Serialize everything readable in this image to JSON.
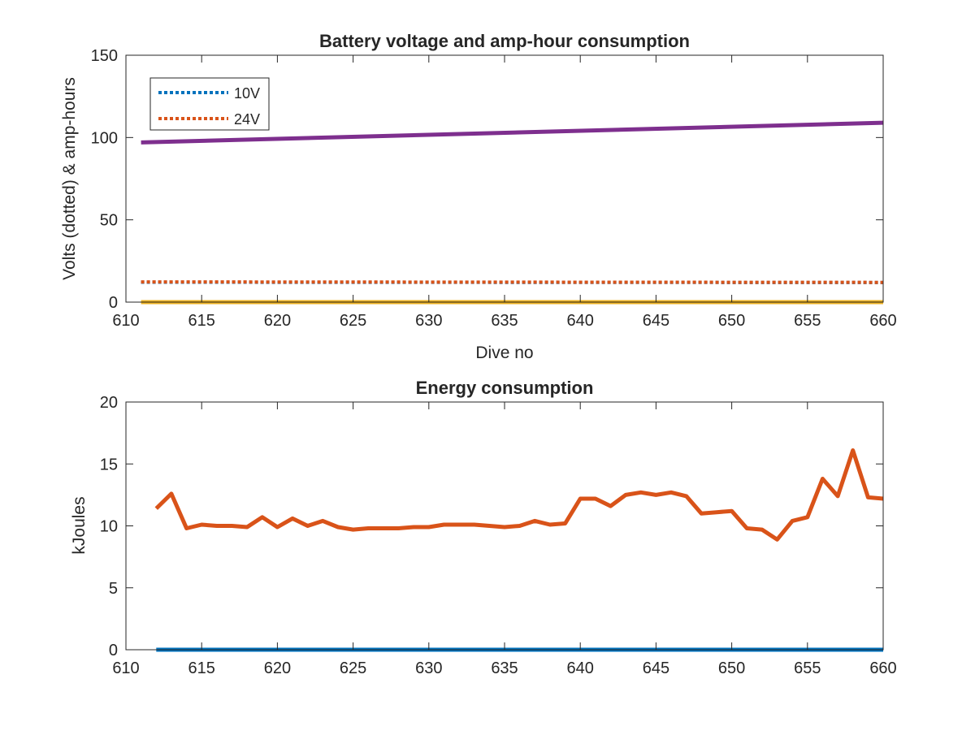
{
  "chart_data": [
    {
      "type": "line",
      "title": "Battery voltage and amp-hour consumption",
      "xlabel": "Dive no",
      "ylabel": "Volts (dotted) & amp-hours",
      "xlim": [
        610,
        660
      ],
      "ylim": [
        0,
        150
      ],
      "xticks": [
        "610",
        "615",
        "620",
        "625",
        "630",
        "635",
        "640",
        "645",
        "650",
        "655",
        "660"
      ],
      "yticks": [
        "0",
        "50",
        "100",
        "150"
      ],
      "legend_position": "top-left",
      "grid": false,
      "series": [
        {
          "name": "10V",
          "style": "dotted",
          "color": "#0072BD",
          "in_legend": true,
          "x": [
            611,
            660
          ],
          "y": [
            12.1,
            11.9
          ]
        },
        {
          "name": "24V",
          "style": "dotted",
          "color": "#D95319",
          "in_legend": true,
          "x": [
            611,
            660
          ],
          "y": [
            12.3,
            12.0
          ]
        },
        {
          "style": "solid",
          "color": "#EDB120",
          "in_legend": false,
          "x": [
            611,
            660
          ],
          "y": [
            0,
            0
          ]
        },
        {
          "style": "solid",
          "color": "#7E2F8E",
          "in_legend": false,
          "x": [
            611,
            660
          ],
          "y": [
            97,
            109
          ]
        }
      ]
    },
    {
      "type": "line",
      "title": "Energy consumption",
      "xlabel": "",
      "ylabel": "kJoules",
      "xlim": [
        610,
        660
      ],
      "ylim": [
        0,
        20
      ],
      "xticks": [
        "610",
        "615",
        "620",
        "625",
        "630",
        "635",
        "640",
        "645",
        "650",
        "655",
        "660"
      ],
      "yticks": [
        "0",
        "5",
        "10",
        "15",
        "20"
      ],
      "grid": false,
      "series": [
        {
          "style": "solid",
          "color": "#0072BD",
          "x": [
            612,
            660
          ],
          "y": [
            0,
            0
          ]
        },
        {
          "style": "solid",
          "color": "#D95319",
          "x": [
            612,
            613,
            614,
            615,
            616,
            617,
            618,
            619,
            620,
            621,
            622,
            623,
            624,
            625,
            626,
            627,
            628,
            629,
            630,
            631,
            632,
            633,
            634,
            635,
            636,
            637,
            638,
            639,
            640,
            641,
            642,
            643,
            644,
            645,
            646,
            647,
            648,
            649,
            650,
            651,
            652,
            653,
            654,
            655,
            656,
            657,
            658,
            659,
            660
          ],
          "y": [
            11.4,
            12.6,
            9.8,
            10.1,
            10.0,
            10.0,
            9.9,
            10.7,
            9.9,
            10.6,
            10.0,
            10.4,
            9.9,
            9.7,
            9.8,
            9.8,
            9.8,
            9.9,
            9.9,
            10.1,
            10.1,
            10.1,
            10.0,
            9.9,
            10.0,
            10.4,
            10.1,
            10.2,
            12.2,
            12.2,
            11.6,
            12.5,
            12.7,
            12.5,
            12.7,
            12.4,
            11.0,
            11.1,
            11.2,
            9.8,
            9.7,
            8.9,
            10.4,
            10.7,
            13.8,
            12.4,
            16.1,
            12.3,
            12.2
          ]
        }
      ]
    }
  ]
}
